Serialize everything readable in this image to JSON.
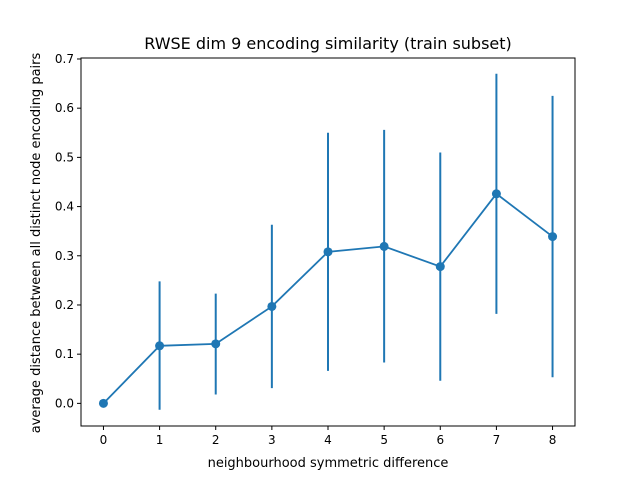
{
  "chart_data": {
    "type": "line",
    "title": "RWSE dim 9 encoding similarity (train subset)",
    "xlabel": "neighbourhood symmetric difference",
    "ylabel": "average distance between all distinct node encoding pairs",
    "xlim": [
      -0.4,
      8.4
    ],
    "ylim": [
      -0.046,
      0.702
    ],
    "xticks": [
      0,
      1,
      2,
      3,
      4,
      5,
      6,
      7,
      8
    ],
    "yticks": [
      0.0,
      0.1,
      0.2,
      0.3,
      0.4,
      0.5,
      0.6,
      0.7
    ],
    "grid": false,
    "color": "#1f77b4",
    "x": [
      0,
      1,
      2,
      3,
      4,
      5,
      6,
      7,
      8
    ],
    "y": [
      0.0,
      0.117,
      0.121,
      0.197,
      0.308,
      0.319,
      0.278,
      0.426,
      0.339
    ],
    "err_low": [
      0.0,
      -0.013,
      0.018,
      0.031,
      0.066,
      0.083,
      0.046,
      0.182,
      0.053
    ],
    "err_high": [
      0.0,
      0.248,
      0.223,
      0.363,
      0.55,
      0.556,
      0.51,
      0.67,
      0.625
    ]
  }
}
